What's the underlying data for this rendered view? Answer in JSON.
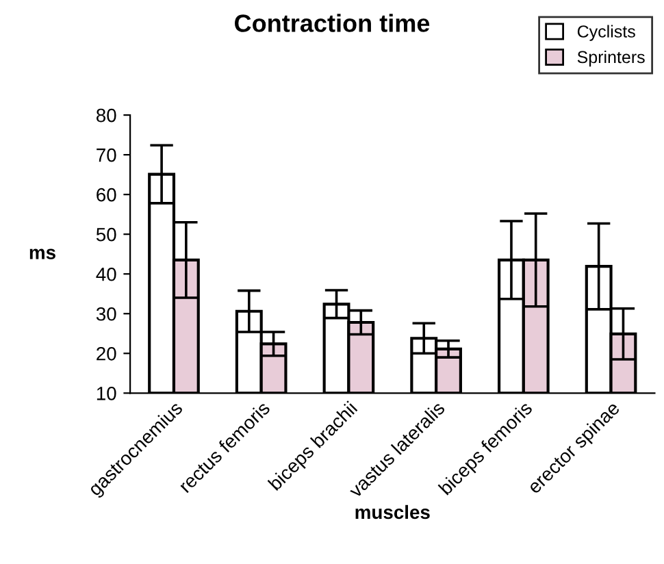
{
  "chart_data": {
    "type": "bar",
    "title": "Contraction time",
    "xlabel": "muscles",
    "ylabel": "ms",
    "categories": [
      "gastrocnemius",
      "rectus femoris",
      "biceps brachii",
      "vastus lateralis",
      "biceps femoris",
      "erector spinae"
    ],
    "series": [
      {
        "name": "Cyclists",
        "color": "#ffffff",
        "values": [
          65.1,
          30.6,
          32.4,
          23.8,
          43.5,
          41.9
        ],
        "errors": [
          7.3,
          5.2,
          3.5,
          3.8,
          9.8,
          10.8
        ]
      },
      {
        "name": "Sprinters",
        "color": "#e8ccd8",
        "values": [
          43.5,
          22.4,
          27.8,
          21.1,
          43.5,
          24.9
        ],
        "errors": [
          9.5,
          3.0,
          3.0,
          2.1,
          11.7,
          6.4
        ]
      }
    ],
    "ylim": [
      10,
      80
    ],
    "yticks": [
      10,
      20,
      30,
      40,
      50,
      60,
      70,
      80
    ],
    "grid": false,
    "legend": "top right"
  }
}
